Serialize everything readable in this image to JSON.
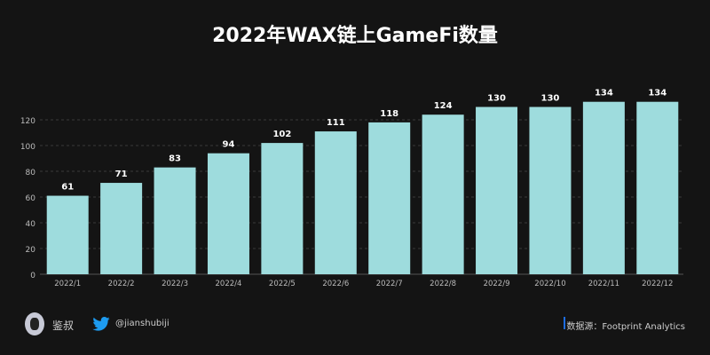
{
  "chart_data": {
    "type": "bar",
    "title": "2022年WAX链上GameFi数量",
    "categories": [
      "2022/1",
      "2022/2",
      "2022/3",
      "2022/4",
      "2022/5",
      "2022/6",
      "2022/7",
      "2022/8",
      "2022/9",
      "2022/10",
      "2022/11",
      "2022/12"
    ],
    "values": [
      61,
      71,
      83,
      94,
      102,
      111,
      118,
      124,
      130,
      130,
      134,
      134
    ],
    "yticks": [
      0,
      20,
      40,
      60,
      80,
      100,
      120
    ],
    "ylim": [
      0,
      140
    ],
    "xlabel": "",
    "ylabel": "",
    "grid": true,
    "bar_color": "#9edcdd"
  },
  "footer": {
    "author": "鉴叔",
    "twitter_handle": "@jianshubiji",
    "source": "数据源：Footprint  Analytics",
    "accent": "#1e6de0"
  }
}
